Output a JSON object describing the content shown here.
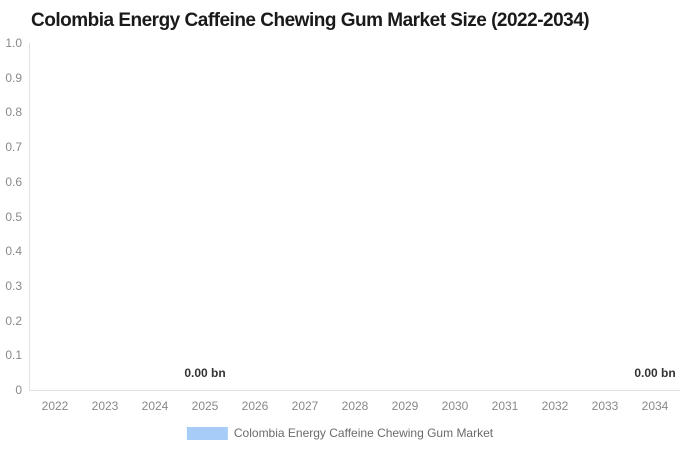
{
  "chart_data": {
    "type": "bar",
    "title": "Colombia Energy Caffeine Chewing Gum Market Size (2022-2034)",
    "categories": [
      "2022",
      "2023",
      "2024",
      "2025",
      "2026",
      "2027",
      "2028",
      "2029",
      "2030",
      "2031",
      "2032",
      "2033",
      "2034"
    ],
    "series": [
      {
        "name": "Colombia Energy Caffeine Chewing Gum Market",
        "values": [
          0,
          0,
          0,
          0,
          0,
          0,
          0,
          0,
          0,
          0,
          0,
          0,
          0
        ],
        "color": "#a6ccf7"
      }
    ],
    "unit": "bn",
    "ylim": [
      0,
      1
    ],
    "y_ticks": [
      "0",
      "0.1",
      "0.2",
      "0.3",
      "0.4",
      "0.5",
      "0.6",
      "0.7",
      "0.8",
      "0.9",
      "1.0"
    ],
    "grid": false,
    "legend_position": "bottom",
    "data_labels": [
      {
        "category": "2025",
        "text": "0.00 bn"
      },
      {
        "category": "2034",
        "text": "0.00 bn"
      }
    ]
  },
  "legend": {
    "label": "Colombia Energy Caffeine Chewing Gum Market",
    "swatch_color": "#a6ccf7"
  },
  "colors": {
    "title_text": "#1a1a1a",
    "tick_text": "#898989",
    "data_label_text": "#333333",
    "legend_text": "#6b6b6b",
    "axis_line": "#e2e2e2",
    "series": "#a6ccf7"
  }
}
